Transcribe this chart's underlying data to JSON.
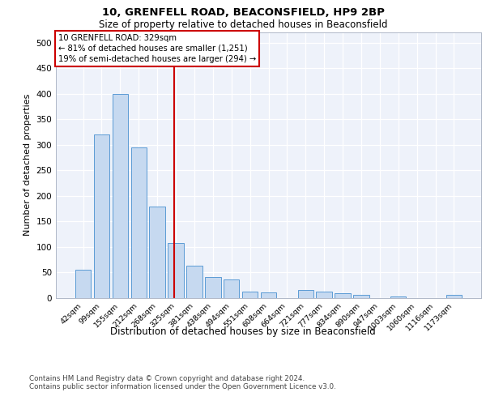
{
  "title1": "10, GRENFELL ROAD, BEACONSFIELD, HP9 2BP",
  "title2": "Size of property relative to detached houses in Beaconsfield",
  "xlabel": "Distribution of detached houses by size in Beaconsfield",
  "ylabel": "Number of detached properties",
  "footnote": "Contains HM Land Registry data © Crown copyright and database right 2024.\nContains public sector information licensed under the Open Government Licence v3.0.",
  "annotation_title": "10 GRENFELL ROAD: 329sqm",
  "annotation_line1": "← 81% of detached houses are smaller (1,251)",
  "annotation_line2": "19% of semi-detached houses are larger (294) →",
  "bar_categories": [
    "42sqm",
    "99sqm",
    "155sqm",
    "212sqm",
    "268sqm",
    "325sqm",
    "381sqm",
    "438sqm",
    "494sqm",
    "551sqm",
    "608sqm",
    "664sqm",
    "721sqm",
    "777sqm",
    "834sqm",
    "890sqm",
    "947sqm",
    "1003sqm",
    "1060sqm",
    "1116sqm",
    "1173sqm"
  ],
  "bar_values": [
    55,
    320,
    400,
    295,
    178,
    107,
    63,
    41,
    36,
    12,
    10,
    0,
    15,
    12,
    9,
    5,
    0,
    3,
    0,
    0,
    5
  ],
  "bar_color": "#c6d9f0",
  "bar_edge_color": "#5b9bd5",
  "vline_color": "#cc0000",
  "box_color": "#cc0000",
  "ylim": [
    0,
    520
  ],
  "background_color": "#eef2fa"
}
